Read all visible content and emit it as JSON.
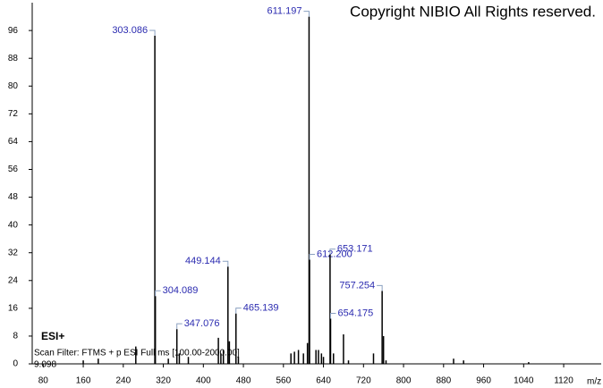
{
  "chart_data": {
    "type": "spectrum",
    "title": "Copyright NIBIO All Rights reserved.",
    "ionization": "ESI+",
    "scan_filter": "Scan Filter: FTMS + p ESI Full ms [100.00-2000.00]",
    "retention_time": "9.098",
    "x_label": "m/z",
    "color": "#000000",
    "label_color": "#2b2bb0",
    "x": [
      160,
      190,
      265,
      303.086,
      304.089,
      330,
      347.076,
      352,
      370,
      430,
      435,
      440,
      449.144,
      452,
      465.139,
      470,
      575,
      582,
      590,
      600,
      608,
      611.197,
      612.2,
      625,
      630,
      636,
      640,
      653.171,
      654.175,
      660,
      680,
      690,
      740,
      757.254,
      760,
      765,
      900,
      920,
      1050
    ],
    "values": [
      1,
      1.5,
      5,
      94.5,
      19.5,
      1.5,
      10,
      3,
      2,
      7.5,
      3,
      4,
      28,
      6.5,
      14.5,
      2,
      3,
      3.5,
      4,
      3,
      6,
      100,
      30,
      4,
      4,
      3,
      2,
      31.5,
      13,
      3,
      8.5,
      1,
      3,
      21,
      8,
      1,
      1.5,
      1,
      0.5
    ],
    "peak_labels": [
      null,
      null,
      null,
      "303.086",
      "304.089",
      null,
      "347.076",
      null,
      null,
      null,
      null,
      null,
      "449.144",
      null,
      "465.139",
      null,
      null,
      null,
      null,
      null,
      null,
      "611.197",
      "612.200",
      null,
      null,
      null,
      null,
      "653.171",
      "654.175",
      null,
      null,
      null,
      null,
      "757.254",
      null,
      null,
      null,
      null,
      null
    ],
    "xlim": [
      58,
      1195
    ],
    "ylim": [
      0,
      103.5
    ],
    "xticks": [
      80,
      160,
      240,
      320,
      400,
      480,
      560,
      640,
      720,
      800,
      880,
      960,
      1040,
      1120
    ],
    "yticks": [
      0,
      8,
      16,
      24,
      32,
      40,
      48,
      56,
      64,
      72,
      80,
      88,
      96
    ]
  }
}
